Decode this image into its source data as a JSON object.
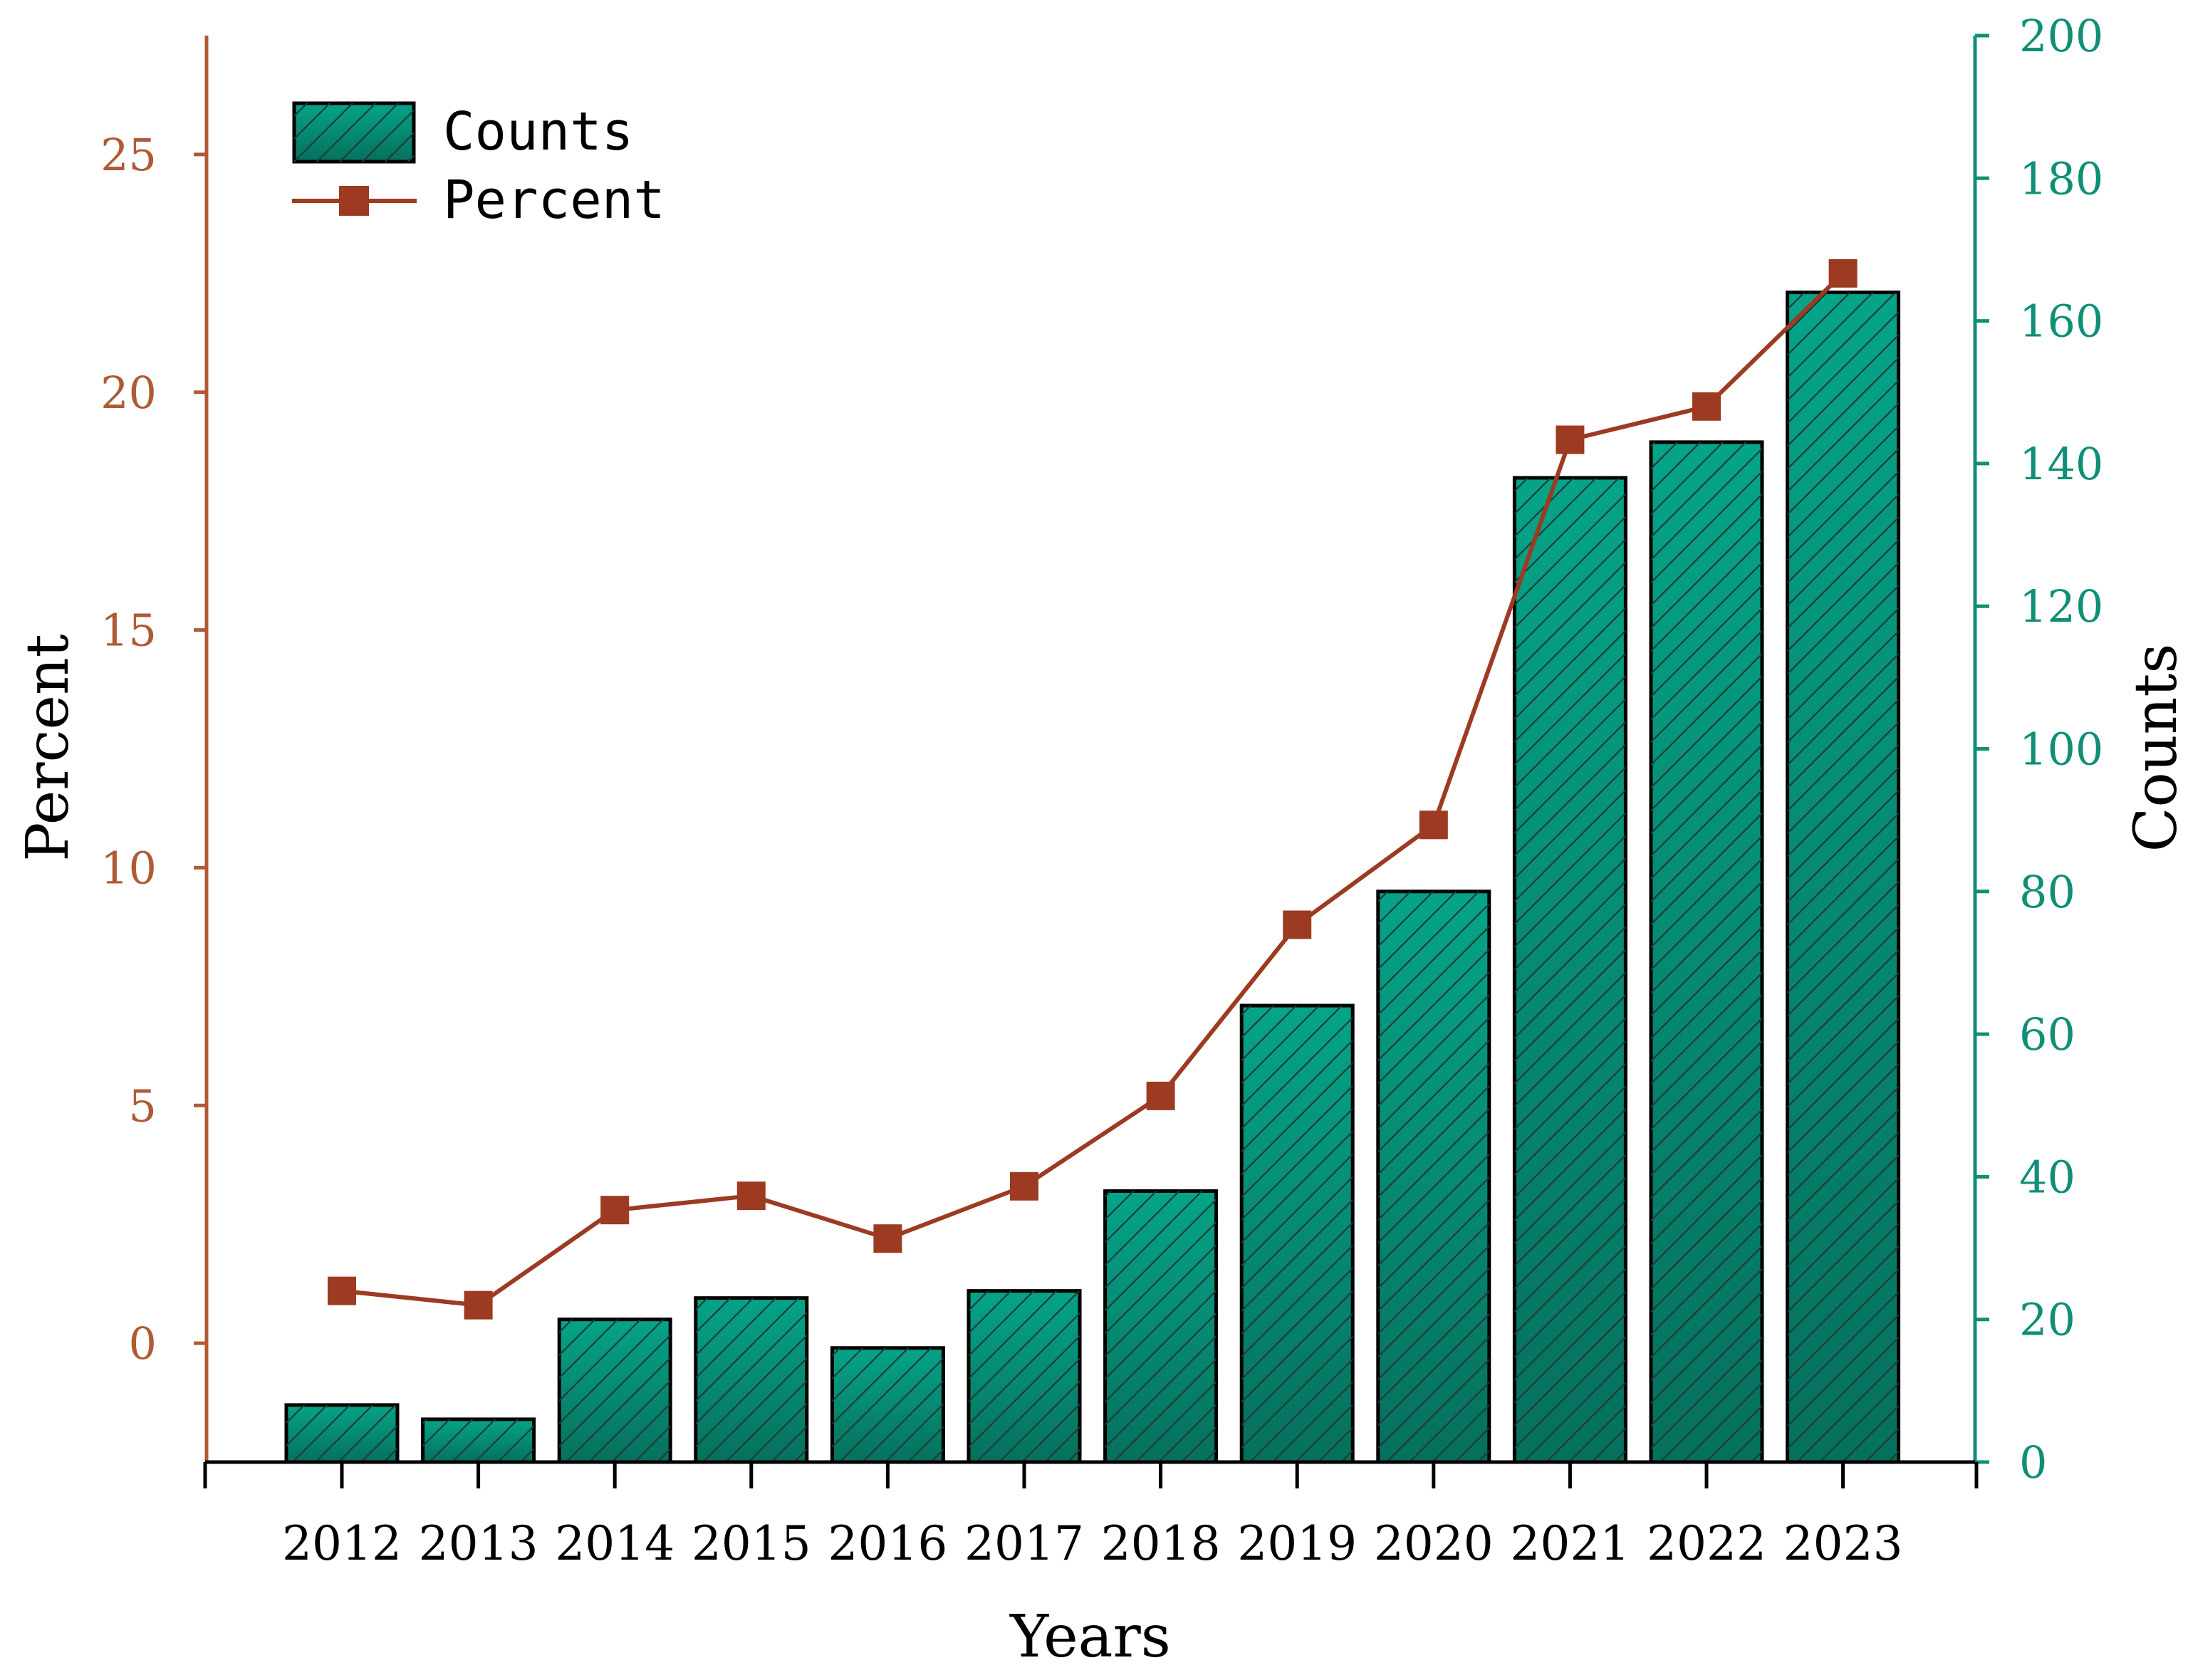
{
  "chart_data": {
    "type": "bar",
    "title": "",
    "categories": [
      "2012",
      "2013",
      "2014",
      "2015",
      "2016",
      "2017",
      "2018",
      "2019",
      "2020",
      "2021",
      "2022",
      "2023"
    ],
    "series": [
      {
        "name": "Counts",
        "type": "bar",
        "axis": "right",
        "values": [
          8,
          6,
          20,
          23,
          16,
          24,
          38,
          64,
          80,
          138,
          143,
          164
        ]
      },
      {
        "name": "Percent",
        "type": "line",
        "axis": "left",
        "values": [
          1.1,
          0.8,
          2.8,
          3.1,
          2.2,
          3.3,
          5.2,
          8.8,
          10.9,
          19.0,
          19.7,
          22.5
        ]
      }
    ],
    "xlabel": "Years",
    "ylabel_left": "Percent",
    "ylabel_right": "Counts",
    "ylim_left": [
      -2.5,
      27.5
    ],
    "yticks_left": [
      0,
      5,
      10,
      15,
      20,
      25
    ],
    "ylim_right": [
      0,
      200
    ],
    "yticks_right": [
      0,
      20,
      40,
      60,
      80,
      100,
      120,
      140,
      160,
      180,
      200
    ],
    "legend": {
      "position": "top-left",
      "entries": [
        "Counts",
        "Percent"
      ]
    },
    "grid": false,
    "colors": {
      "bar": "#05a488",
      "bar_dark": "#06705d",
      "line": "#9c3b22",
      "left_axis": "#b05a35",
      "right_axis": "#0f8f78"
    }
  }
}
